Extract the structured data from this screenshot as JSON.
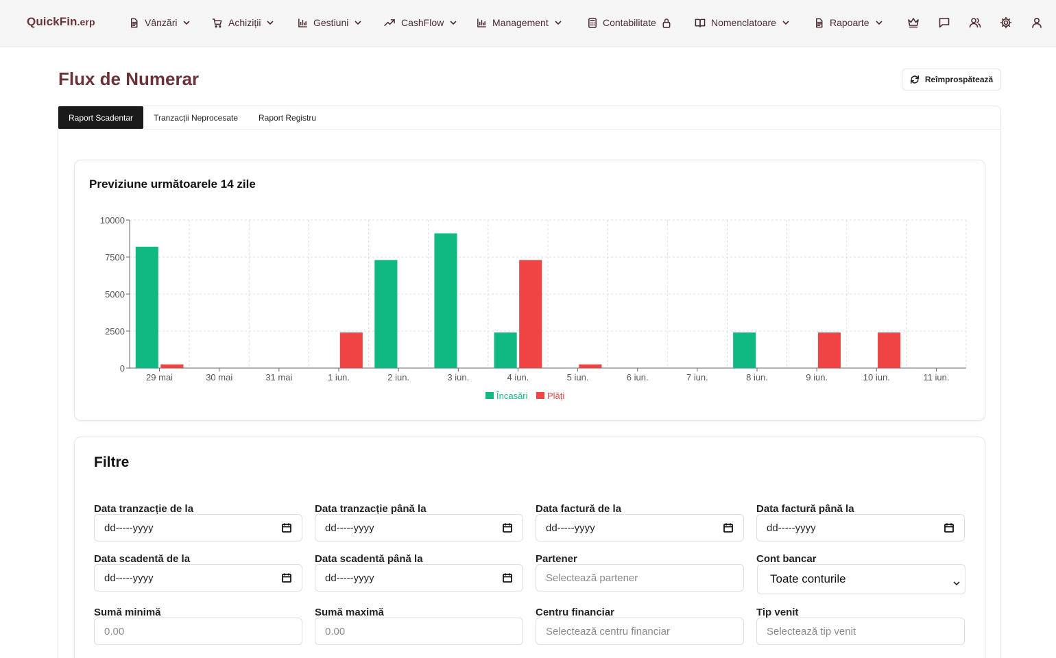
{
  "app": {
    "logo_main": "QuickFin",
    "logo_suffix": ".erp"
  },
  "nav": {
    "items": [
      {
        "label": "Vânzări",
        "icon": "document-icon"
      },
      {
        "label": "Achiziții",
        "icon": "cart-icon"
      },
      {
        "label": "Gestiuni",
        "icon": "bar-chart-icon"
      },
      {
        "label": "CashFlow",
        "icon": "trend-up-icon"
      },
      {
        "label": "Management",
        "icon": "bar-chart-icon"
      },
      {
        "label": "Contabilitate",
        "icon": "calculator-icon",
        "locked": true
      },
      {
        "label": "Nomenclatoare",
        "icon": "book-icon"
      },
      {
        "label": "Rapoarte",
        "icon": "document-icon"
      }
    ],
    "right_icons": [
      "crown-icon",
      "chat-icon",
      "users-icon",
      "gear-icon",
      "user-icon"
    ]
  },
  "page": {
    "title": "Flux de Numerar",
    "refresh_label": "Reîmprospătează"
  },
  "tabs": [
    {
      "label": "Raport Scadentar",
      "active": true
    },
    {
      "label": "Tranzacții Neprocesate",
      "active": false
    },
    {
      "label": "Raport Registru",
      "active": false
    }
  ],
  "chart_title": "Previziune următoarele 14 zile",
  "chart_data": {
    "type": "bar",
    "categories": [
      "29 mai",
      "30 mai",
      "31 mai",
      "1 iun.",
      "2 iun.",
      "3 iun.",
      "4 iun.",
      "5 iun.",
      "6 iun.",
      "7 iun.",
      "8 iun.",
      "9 iun.",
      "10 iun.",
      "11 iun."
    ],
    "series": [
      {
        "name": "Încasări",
        "color": "#10b981",
        "values": [
          8200,
          0,
          0,
          0,
          7300,
          9100,
          2400,
          0,
          0,
          0,
          2400,
          0,
          0,
          0
        ]
      },
      {
        "name": "Plăți",
        "color": "#ef4444",
        "values": [
          250,
          0,
          0,
          2400,
          0,
          0,
          7300,
          250,
          0,
          0,
          0,
          2400,
          2400,
          0
        ]
      }
    ],
    "ylim": [
      0,
      10000
    ],
    "yticks": [
      0,
      2500,
      5000,
      7500,
      10000
    ],
    "grid": true,
    "legend": "bottom"
  },
  "filters": {
    "title": "Filtre",
    "date_placeholder": "dd-----yyyy",
    "fields": [
      {
        "label": "Data tranzacție de la"
      },
      {
        "label": "Data tranzacție până la"
      },
      {
        "label": "Data factură de la"
      },
      {
        "label": "Data factură până la"
      },
      {
        "label": "Data scadentă de la"
      },
      {
        "label": "Data scadentă până la"
      },
      {
        "label": "Partener",
        "placeholder": "Selectează partener"
      },
      {
        "label": "Cont bancar",
        "value": "Toate conturile"
      },
      {
        "label": "Sumă minimă",
        "placeholder": "0.00"
      },
      {
        "label": "Sumă maximă",
        "placeholder": "0.00"
      },
      {
        "label": "Centru financiar",
        "placeholder": "Selectează centru financiar"
      },
      {
        "label": "Tip venit",
        "placeholder": "Selectează tip venit"
      }
    ]
  }
}
